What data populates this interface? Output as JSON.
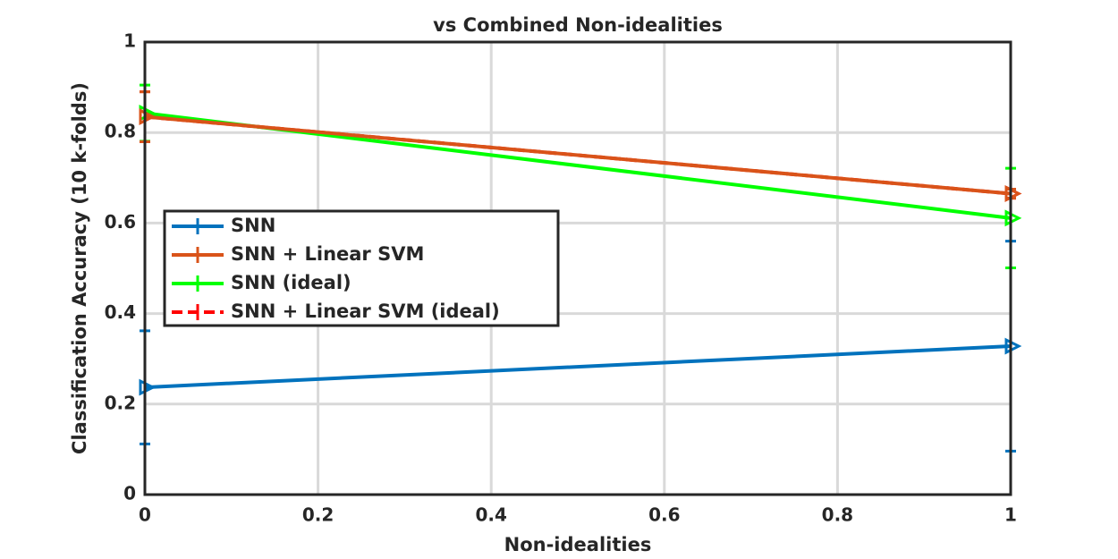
{
  "chart_data": {
    "type": "line",
    "title": "vs Combined Non-idealities",
    "x_label": "Non-idealities",
    "y_label": "Classification Accuracy (10 k-folds)",
    "x": [
      0,
      1
    ],
    "series": [
      {
        "name": "SNN",
        "color": "#0072bd",
        "dashed": false,
        "values": [
          0.237,
          0.328
        ],
        "errors": [
          0.125,
          0.232
        ]
      },
      {
        "name": "SNN + Linear SVM",
        "color": "#d95319",
        "dashed": false,
        "values": [
          0.835,
          0.665
        ],
        "errors": [
          0.055,
          0.01
        ]
      },
      {
        "name": "SNN (ideal)",
        "color": "#00ff00",
        "dashed": false,
        "values": [
          0.843,
          0.611
        ],
        "errors": [
          0.062,
          0.11
        ]
      },
      {
        "name": "SNN + Linear SVM (ideal)",
        "color": "#ff0000",
        "dashed": true,
        "values": [
          0.835,
          0.665
        ],
        "errors": [
          0.055,
          0.01
        ]
      }
    ],
    "xlim": [
      0,
      1
    ],
    "xticks": [
      0,
      0.2,
      0.4,
      0.6,
      0.8,
      1
    ],
    "ylim": [
      0,
      1
    ],
    "yticks": [
      0,
      0.2,
      0.4,
      0.6,
      0.8,
      1
    ],
    "grid": true,
    "legend": "west"
  }
}
